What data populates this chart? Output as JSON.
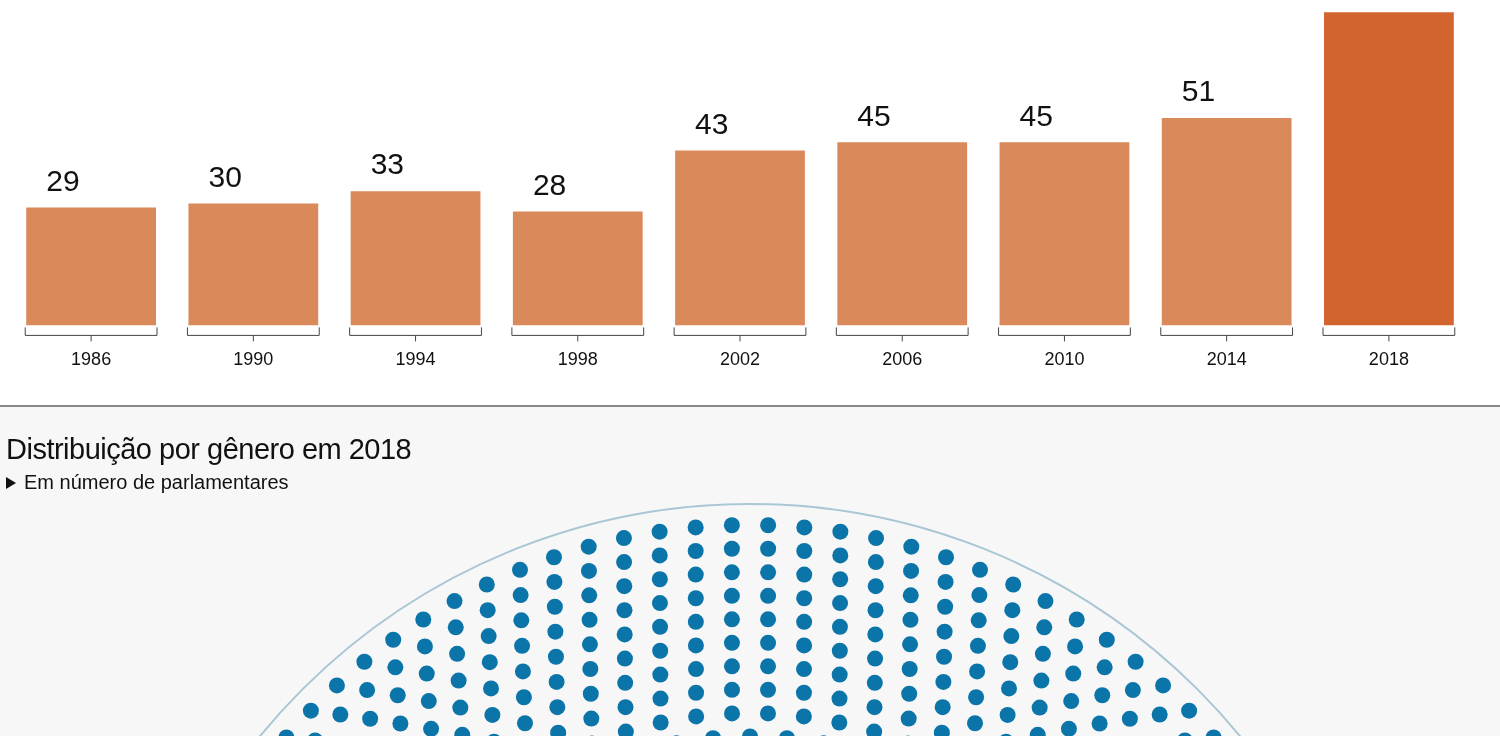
{
  "chart_data": [
    {
      "type": "bar",
      "categories": [
        "1986",
        "1990",
        "1994",
        "1998",
        "2002",
        "2006",
        "2010",
        "2014",
        "2018"
      ],
      "values": [
        29,
        30,
        33,
        28,
        43,
        45,
        45,
        51,
        77
      ],
      "colors": [
        "#da8a5a",
        "#da8a5a",
        "#da8a5a",
        "#da8a5a",
        "#da8a5a",
        "#da8a5a",
        "#da8a5a",
        "#da8a5a",
        "#d2642f"
      ],
      "value_labels": [
        "29",
        "30",
        "33",
        "28",
        "43",
        "45",
        "45",
        "51",
        null
      ]
    },
    {
      "type": "other",
      "title": "Distribuição por gênero em 2018",
      "subtitle": "Em número de parlamentares"
    }
  ]
}
